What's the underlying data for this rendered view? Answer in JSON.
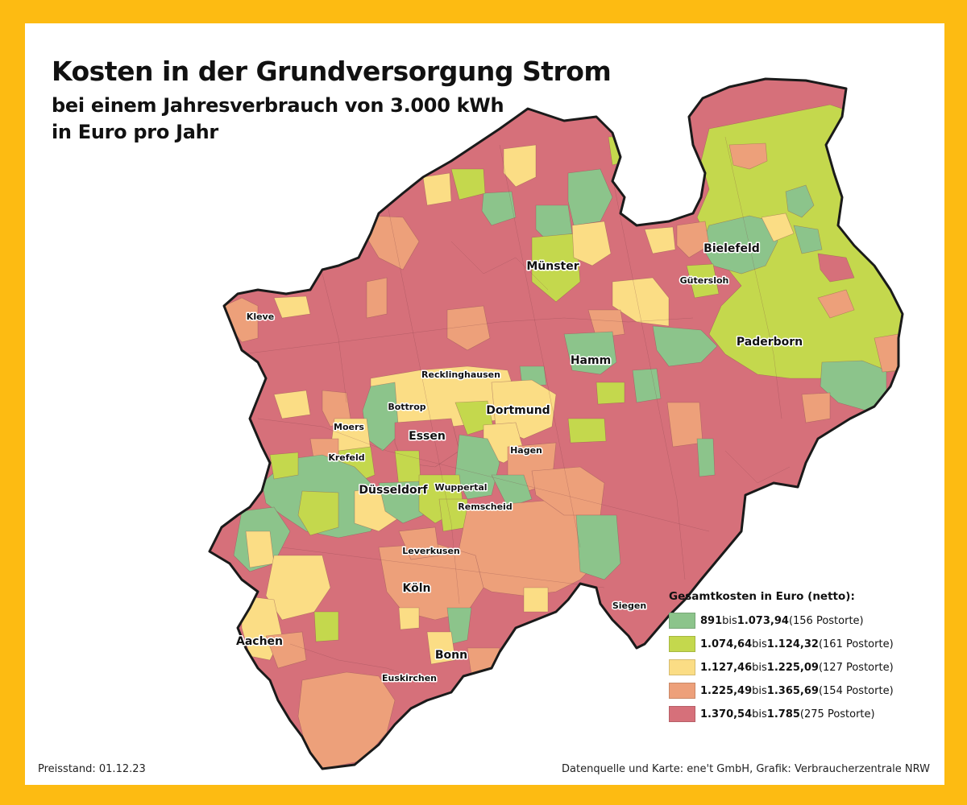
{
  "title": "Kosten in der Grundversorgung Strom",
  "subtitle_line1": "bei einem Jahresverbrauch von 3.000 kWh",
  "subtitle_line2": "in Euro pro Jahr",
  "colors": {
    "frame": "#FDBB12",
    "class1": "#8CC48B",
    "class2": "#C4D84D",
    "class3": "#FBDD85",
    "class4": "#EDA07A",
    "class5": "#D6707A",
    "border": "#1a1a1a"
  },
  "legend": {
    "title": "Gesamtkosten in Euro (netto):",
    "items": [
      {
        "from": "891",
        "mid": " bis ",
        "to": "1.073,94",
        "count": " (156 Postorte)",
        "color": "#8CC48B"
      },
      {
        "from": "1.074,64",
        "mid": " bis ",
        "to": "1.124,32",
        "count": " (161 Postorte)",
        "color": "#C4D84D"
      },
      {
        "from": "1.127,46",
        "mid": " bis ",
        "to": "1.225,09",
        "count": " (127 Postorte)",
        "color": "#FBDD85"
      },
      {
        "from": "1.225,49",
        "mid": " bis ",
        "to": "1.365,69",
        "count": " (154 Postorte)",
        "color": "#EDA07A"
      },
      {
        "from": "1.370,54",
        "mid": " bis ",
        "to": "1.785",
        "count": " (275 Postorte)",
        "color": "#D6707A"
      }
    ]
  },
  "cities": {
    "muenster": "Münster",
    "bielefeld": "Bielefeld",
    "guetersloh": "Gütersloh",
    "paderborn": "Paderborn",
    "kleve": "Kleve",
    "hamm": "Hamm",
    "recklinghausen": "Recklinghausen",
    "bottrop": "Bottrop",
    "dortmund": "Dortmund",
    "moers": "Moers",
    "essen": "Essen",
    "hagen": "Hagen",
    "krefeld": "Krefeld",
    "duesseldorf": "Düsseldorf",
    "wuppertal": "Wuppertal",
    "remscheid": "Remscheid",
    "leverkusen": "Leverkusen",
    "koeln": "Köln",
    "siegen": "Siegen",
    "aachen": "Aachen",
    "bonn": "Bonn",
    "euskirchen": "Euskirchen"
  },
  "footer": {
    "left": "Preisstand: 01.12.23",
    "right": "Datenquelle und Karte: ene't GmbH, Grafik: Verbraucherzentrale NRW"
  }
}
